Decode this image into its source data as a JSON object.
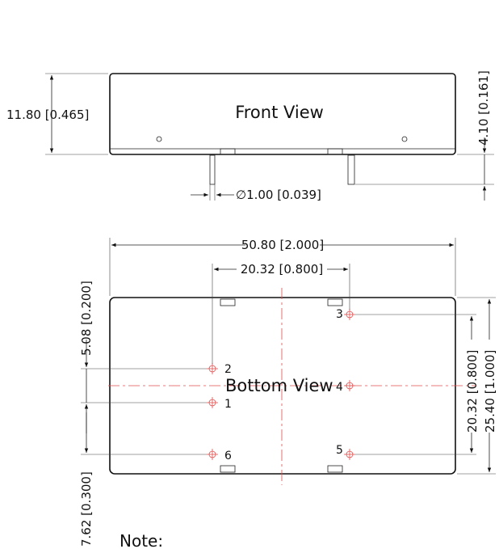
{
  "front_view": {
    "title": "Front View",
    "height_dim": "11.80 [0.465]",
    "pin_length_dim": "4.10 [0.161]",
    "pin_diameter_dim": "∅1.00 [0.039]"
  },
  "bottom_view": {
    "title": "Bottom View",
    "width_dim": "50.80 [2.000]",
    "pin_spacing_dim": "20.32 [0.800]",
    "pin_row_dim_left": "5.08 [0.200]",
    "pin_offset_dim": "7.62 [0.300]",
    "pin_span_dim_right": "20.32 [0.800]",
    "depth_dim": "25.40 [1.000]",
    "pins": [
      "1",
      "2",
      "3",
      "4",
      "5",
      "6"
    ]
  },
  "note": "Note:",
  "colors": {
    "outline": "#111111",
    "centerline": "#e05050"
  }
}
